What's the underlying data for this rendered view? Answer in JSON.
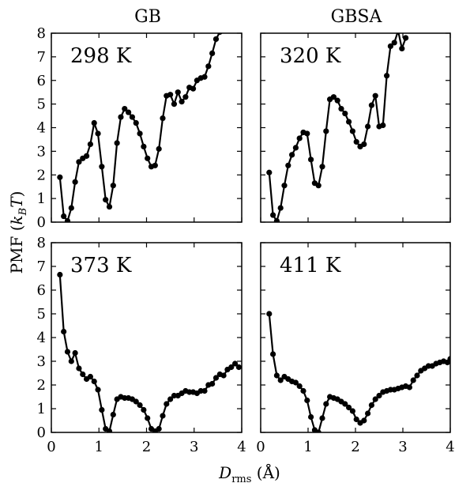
{
  "chart_data": {
    "type": "line",
    "column_titles": [
      "GB",
      "GBSA"
    ],
    "ylabel_main": "PMF (",
    "ylabel_k": "k",
    "ylabel_sub": "B",
    "ylabel_t": "T",
    "ylabel_close": ")",
    "xlabel_main": "D",
    "xlabel_sub": "rms",
    "xlabel_unit": " (Å)",
    "xlim": [
      0,
      4
    ],
    "x_ticks": [
      "0",
      "1",
      "2",
      "3",
      "4"
    ],
    "y_ticks": [
      "0",
      "1",
      "2",
      "3",
      "4",
      "5",
      "6",
      "7",
      "8"
    ],
    "panels": [
      {
        "label": "298 K",
        "ylim": [
          0,
          8
        ],
        "x": [
          0.18,
          0.26,
          0.34,
          0.42,
          0.5,
          0.58,
          0.66,
          0.74,
          0.82,
          0.9,
          0.98,
          1.06,
          1.14,
          1.22,
          1.3,
          1.38,
          1.46,
          1.54,
          1.62,
          1.7,
          1.78,
          1.86,
          1.94,
          2.02,
          2.1,
          2.18,
          2.26,
          2.34,
          2.42,
          2.5,
          2.58,
          2.66,
          2.74,
          2.82,
          2.9,
          2.98,
          3.06,
          3.14,
          3.22,
          3.3,
          3.38,
          3.46,
          3.54
        ],
        "y": [
          1.9,
          0.25,
          0.05,
          0.6,
          1.7,
          2.55,
          2.7,
          2.8,
          3.3,
          4.2,
          3.75,
          2.35,
          0.95,
          0.65,
          1.55,
          3.35,
          4.45,
          4.8,
          4.65,
          4.45,
          4.2,
          3.75,
          3.2,
          2.7,
          2.35,
          2.4,
          3.1,
          4.4,
          5.35,
          5.4,
          5.0,
          5.5,
          5.1,
          5.3,
          5.7,
          5.65,
          6.0,
          6.1,
          6.15,
          6.6,
          7.15,
          7.75,
          8.05
        ]
      },
      {
        "label": "320 K",
        "ylim": [
          0,
          8
        ],
        "x": [
          0.18,
          0.26,
          0.34,
          0.42,
          0.5,
          0.58,
          0.66,
          0.74,
          0.82,
          0.9,
          0.98,
          1.06,
          1.14,
          1.22,
          1.3,
          1.38,
          1.46,
          1.54,
          1.62,
          1.7,
          1.78,
          1.86,
          1.94,
          2.02,
          2.1,
          2.18,
          2.26,
          2.34,
          2.42,
          2.5,
          2.58,
          2.66,
          2.74,
          2.82,
          2.9,
          2.98,
          3.06
        ],
        "y": [
          2.1,
          0.3,
          0.05,
          0.6,
          1.55,
          2.4,
          2.85,
          3.15,
          3.55,
          3.8,
          3.75,
          2.65,
          1.65,
          1.55,
          2.35,
          3.85,
          5.2,
          5.3,
          5.15,
          4.8,
          4.6,
          4.25,
          3.85,
          3.4,
          3.2,
          3.3,
          4.05,
          4.95,
          5.35,
          4.05,
          4.1,
          6.2,
          7.45,
          7.6,
          8.1,
          7.35,
          7.8
        ]
      },
      {
        "label": "373 K",
        "ylim": [
          0,
          8
        ],
        "x": [
          0.18,
          0.26,
          0.34,
          0.42,
          0.5,
          0.58,
          0.66,
          0.74,
          0.82,
          0.9,
          0.98,
          1.06,
          1.14,
          1.22,
          1.3,
          1.38,
          1.46,
          1.54,
          1.62,
          1.7,
          1.78,
          1.86,
          1.94,
          2.02,
          2.1,
          2.18,
          2.26,
          2.34,
          2.42,
          2.5,
          2.58,
          2.66,
          2.74,
          2.82,
          2.9,
          2.98,
          3.06,
          3.14,
          3.22,
          3.3,
          3.38,
          3.46,
          3.54,
          3.62,
          3.7,
          3.78,
          3.86,
          3.94
        ],
        "y": [
          6.65,
          4.25,
          3.4,
          3.0,
          3.35,
          2.7,
          2.45,
          2.25,
          2.35,
          2.15,
          1.8,
          0.95,
          0.15,
          0.05,
          0.75,
          1.4,
          1.5,
          1.45,
          1.45,
          1.4,
          1.3,
          1.15,
          0.95,
          0.6,
          0.15,
          0.05,
          0.15,
          0.7,
          1.2,
          1.4,
          1.55,
          1.55,
          1.65,
          1.75,
          1.7,
          1.7,
          1.65,
          1.75,
          1.75,
          2.0,
          2.05,
          2.3,
          2.45,
          2.4,
          2.65,
          2.75,
          2.9,
          2.75
        ]
      },
      {
        "label": "411 K",
        "ylim": [
          0,
          8
        ],
        "x": [
          0.18,
          0.26,
          0.34,
          0.42,
          0.5,
          0.58,
          0.66,
          0.74,
          0.82,
          0.9,
          0.98,
          1.06,
          1.14,
          1.22,
          1.3,
          1.38,
          1.46,
          1.54,
          1.62,
          1.7,
          1.78,
          1.86,
          1.94,
          2.02,
          2.1,
          2.18,
          2.26,
          2.34,
          2.42,
          2.5,
          2.58,
          2.66,
          2.74,
          2.82,
          2.9,
          2.98,
          3.06,
          3.14,
          3.22,
          3.3,
          3.38,
          3.46,
          3.54,
          3.62,
          3.7,
          3.78,
          3.86,
          3.94,
          4.0
        ],
        "y": [
          5.0,
          3.3,
          2.4,
          2.2,
          2.35,
          2.25,
          2.15,
          2.1,
          1.95,
          1.75,
          1.35,
          0.65,
          0.1,
          0.0,
          0.6,
          1.2,
          1.5,
          1.45,
          1.4,
          1.3,
          1.2,
          1.05,
          0.9,
          0.55,
          0.4,
          0.5,
          0.8,
          1.15,
          1.4,
          1.55,
          1.7,
          1.75,
          1.8,
          1.8,
          1.85,
          1.9,
          1.95,
          1.9,
          2.2,
          2.4,
          2.6,
          2.7,
          2.8,
          2.8,
          2.9,
          2.95,
          3.0,
          2.95,
          3.1
        ]
      }
    ]
  }
}
